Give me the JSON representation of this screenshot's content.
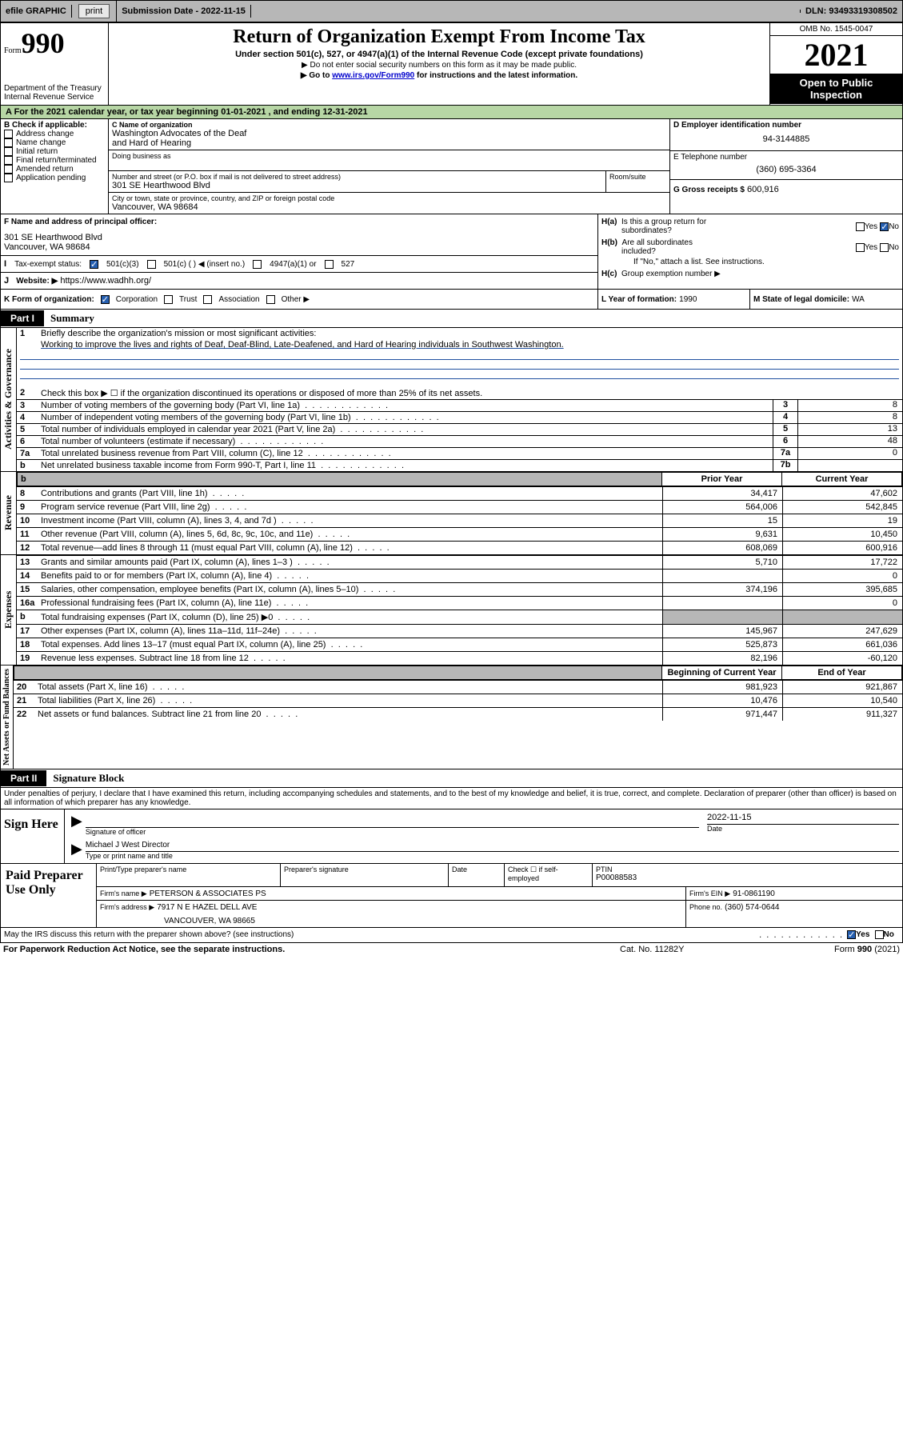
{
  "topbar": {
    "efile": "efile GRAPHIC",
    "print_btn": "print",
    "sub_date_lbl": "Submission Date - 2022-11-15",
    "dln_lbl": "DLN: 93493319308502"
  },
  "header": {
    "form_word": "Form",
    "form_num": "990",
    "dept1": "Department of the Treasury",
    "dept2": "Internal Revenue Service",
    "title": "Return of Organization Exempt From Income Tax",
    "sub": "Under section 501(c), 527, or 4947(a)(1) of the Internal Revenue Code (except private foundations)",
    "arrow1": "▶ Do not enter social security numbers on this form as it may be made public.",
    "arrow2_pre": "▶ Go to ",
    "arrow2_link": "www.irs.gov/Form990",
    "arrow2_post": " for instructions and the latest information.",
    "omb": "OMB No. 1545-0047",
    "year": "2021",
    "open": "Open to Public Inspection"
  },
  "period": {
    "text_pre": "A   For the 2021 calendar year, or tax year beginning ",
    "begin": "01-01-2021",
    "text_mid": "  , and ending ",
    "end": "12-31-2021"
  },
  "boxB": {
    "lbl": "B Check if applicable:",
    "opts": [
      "Address change",
      "Name change",
      "Initial return",
      "Final return/terminated",
      "Amended return",
      "Application pending"
    ]
  },
  "boxC": {
    "name_lbl": "C Name of organization",
    "name1": "Washington Advocates of the Deaf",
    "name2": "and Hard of Hearing",
    "dba_lbl": "Doing business as",
    "addr_lbl": "Number and street (or P.O. box if mail is not delivered to street address)",
    "room_lbl": "Room/suite",
    "addr": "301 SE Hearthwood Blvd",
    "city_lbl": "City or town, state or province, country, and ZIP or foreign postal code",
    "city": "Vancouver, WA  98684"
  },
  "boxD": {
    "lbl": "D Employer identification number",
    "ein": "94-3144885"
  },
  "boxE": {
    "lbl": "E Telephone number",
    "phone": "(360) 695-3364"
  },
  "boxG": {
    "lbl": "G Gross receipts $",
    "amt": "600,916"
  },
  "boxF": {
    "lbl": "F Name and address of principal officer:",
    "line1": "301 SE Hearthwood Blvd",
    "line2": "Vancouver, WA  98684"
  },
  "boxH": {
    "a_lbl": "H(a)  Is this a group return for subordinates?",
    "b_lbl": "H(b)  Are all subordinates included?",
    "b_note": "If \"No,\" attach a list. See instructions.",
    "c_lbl": "H(c)  Group exemption number ▶",
    "yes": "Yes",
    "no": "No"
  },
  "boxI": {
    "lbl": "Tax-exempt status:",
    "o1": "501(c)(3)",
    "o2": "501(c) (   ) ◀ (insert no.)",
    "o3": "4947(a)(1) or",
    "o4": "527"
  },
  "boxJ": {
    "lbl": "Website: ▶",
    "url": "https://www.wadhh.org/"
  },
  "boxK": {
    "lbl": "K Form of organization:",
    "o1": "Corporation",
    "o2": "Trust",
    "o3": "Association",
    "o4": "Other ▶"
  },
  "boxL": {
    "lbl": "L Year of formation:",
    "val": "1990"
  },
  "boxM": {
    "lbl": "M State of legal domicile:",
    "val": "WA"
  },
  "part1": {
    "tag": "Part I",
    "title": "Summary",
    "l1_lbl": "Briefly describe the organization's mission or most significant activities:",
    "l1_mission": "Working to improve the lives and rights of Deaf, Deaf-Blind, Late-Deafened, and Hard of Hearing individuals in Southwest Washington.",
    "l2": "Check this box ▶ ☐  if the organization discontinued its operations or disposed of more than 25% of its net assets.",
    "rows_gov": [
      {
        "n": "3",
        "t": "Number of voting members of the governing body (Part VI, line 1a)",
        "nb": "3",
        "v": "8"
      },
      {
        "n": "4",
        "t": "Number of independent voting members of the governing body (Part VI, line 1b)",
        "nb": "4",
        "v": "8"
      },
      {
        "n": "5",
        "t": "Total number of individuals employed in calendar year 2021 (Part V, line 2a)",
        "nb": "5",
        "v": "13"
      },
      {
        "n": "6",
        "t": "Total number of volunteers (estimate if necessary)",
        "nb": "6",
        "v": "48"
      },
      {
        "n": "7a",
        "t": "Total unrelated business revenue from Part VIII, column (C), line 12",
        "nb": "7a",
        "v": "0"
      },
      {
        "n": "b",
        "t": "Net unrelated business taxable income from Form 990-T, Part I, line 11",
        "nb": "7b",
        "v": ""
      }
    ],
    "col_prior": "Prior Year",
    "col_curr": "Current Year",
    "rows_rev": [
      {
        "n": "8",
        "t": "Contributions and grants (Part VIII, line 1h)",
        "p": "34,417",
        "c": "47,602"
      },
      {
        "n": "9",
        "t": "Program service revenue (Part VIII, line 2g)",
        "p": "564,006",
        "c": "542,845"
      },
      {
        "n": "10",
        "t": "Investment income (Part VIII, column (A), lines 3, 4, and 7d )",
        "p": "15",
        "c": "19"
      },
      {
        "n": "11",
        "t": "Other revenue (Part VIII, column (A), lines 5, 6d, 8c, 9c, 10c, and 11e)",
        "p": "9,631",
        "c": "10,450"
      },
      {
        "n": "12",
        "t": "Total revenue—add lines 8 through 11 (must equal Part VIII, column (A), line 12)",
        "p": "608,069",
        "c": "600,916"
      }
    ],
    "rows_exp": [
      {
        "n": "13",
        "t": "Grants and similar amounts paid (Part IX, column (A), lines 1–3 )",
        "p": "5,710",
        "c": "17,722"
      },
      {
        "n": "14",
        "t": "Benefits paid to or for members (Part IX, column (A), line 4)",
        "p": "",
        "c": "0"
      },
      {
        "n": "15",
        "t": "Salaries, other compensation, employee benefits (Part IX, column (A), lines 5–10)",
        "p": "374,196",
        "c": "395,685"
      },
      {
        "n": "16a",
        "t": "Professional fundraising fees (Part IX, column (A), line 11e)",
        "p": "",
        "c": "0"
      },
      {
        "n": "b",
        "t": "Total fundraising expenses (Part IX, column (D), line 25) ▶0",
        "p": "SHADE",
        "c": "SHADE"
      },
      {
        "n": "17",
        "t": "Other expenses (Part IX, column (A), lines 11a–11d, 11f–24e)",
        "p": "145,967",
        "c": "247,629"
      },
      {
        "n": "18",
        "t": "Total expenses. Add lines 13–17 (must equal Part IX, column (A), line 25)",
        "p": "525,873",
        "c": "661,036"
      },
      {
        "n": "19",
        "t": "Revenue less expenses. Subtract line 18 from line 12",
        "p": "82,196",
        "c": "-60,120"
      }
    ],
    "col_begin": "Beginning of Current Year",
    "col_end": "End of Year",
    "rows_net": [
      {
        "n": "20",
        "t": "Total assets (Part X, line 16)",
        "p": "981,923",
        "c": "921,867"
      },
      {
        "n": "21",
        "t": "Total liabilities (Part X, line 26)",
        "p": "10,476",
        "c": "10,540"
      },
      {
        "n": "22",
        "t": "Net assets or fund balances. Subtract line 21 from line 20",
        "p": "971,447",
        "c": "911,327"
      }
    ],
    "vlabels": {
      "gov": "Activities & Governance",
      "rev": "Revenue",
      "exp": "Expenses",
      "net": "Net Assets or Fund Balances"
    }
  },
  "part2": {
    "tag": "Part II",
    "title": "Signature Block",
    "perjury": "Under penalties of perjury, I declare that I have examined this return, including accompanying schedules and statements, and to the best of my knowledge and belief, it is true, correct, and complete. Declaration of preparer (other than officer) is based on all information of which preparer has any knowledge.",
    "sign_here": "Sign Here",
    "sig_officer_lbl": "Signature of officer",
    "sig_date_lbl": "Date",
    "sig_date": "2022-11-15",
    "sig_name": "Michael J West Director",
    "sig_name_lbl": "Type or print name and title",
    "paid": "Paid Preparer Use Only",
    "prep_name_lbl": "Print/Type preparer's name",
    "prep_sig_lbl": "Preparer's signature",
    "prep_date_lbl": "Date",
    "prep_check_lbl": "Check ☐ if self-employed",
    "ptin_lbl": "PTIN",
    "ptin": "P00088583",
    "firm_name_lbl": "Firm's name    ▶",
    "firm_name": "PETERSON & ASSOCIATES PS",
    "firm_ein_lbl": "Firm's EIN ▶",
    "firm_ein": "91-0861190",
    "firm_addr_lbl": "Firm's address ▶",
    "firm_addr1": "7917 N E HAZEL DELL AVE",
    "firm_addr2": "VANCOUVER, WA  98665",
    "firm_phone_lbl": "Phone no.",
    "firm_phone": "(360) 574-0644",
    "discuss": "May the IRS discuss this return with the preparer shown above? (see instructions)"
  },
  "footer": {
    "pra": "For Paperwork Reduction Act Notice, see the separate instructions.",
    "cat": "Cat. No. 11282Y",
    "form": "Form 990 (2021)"
  }
}
